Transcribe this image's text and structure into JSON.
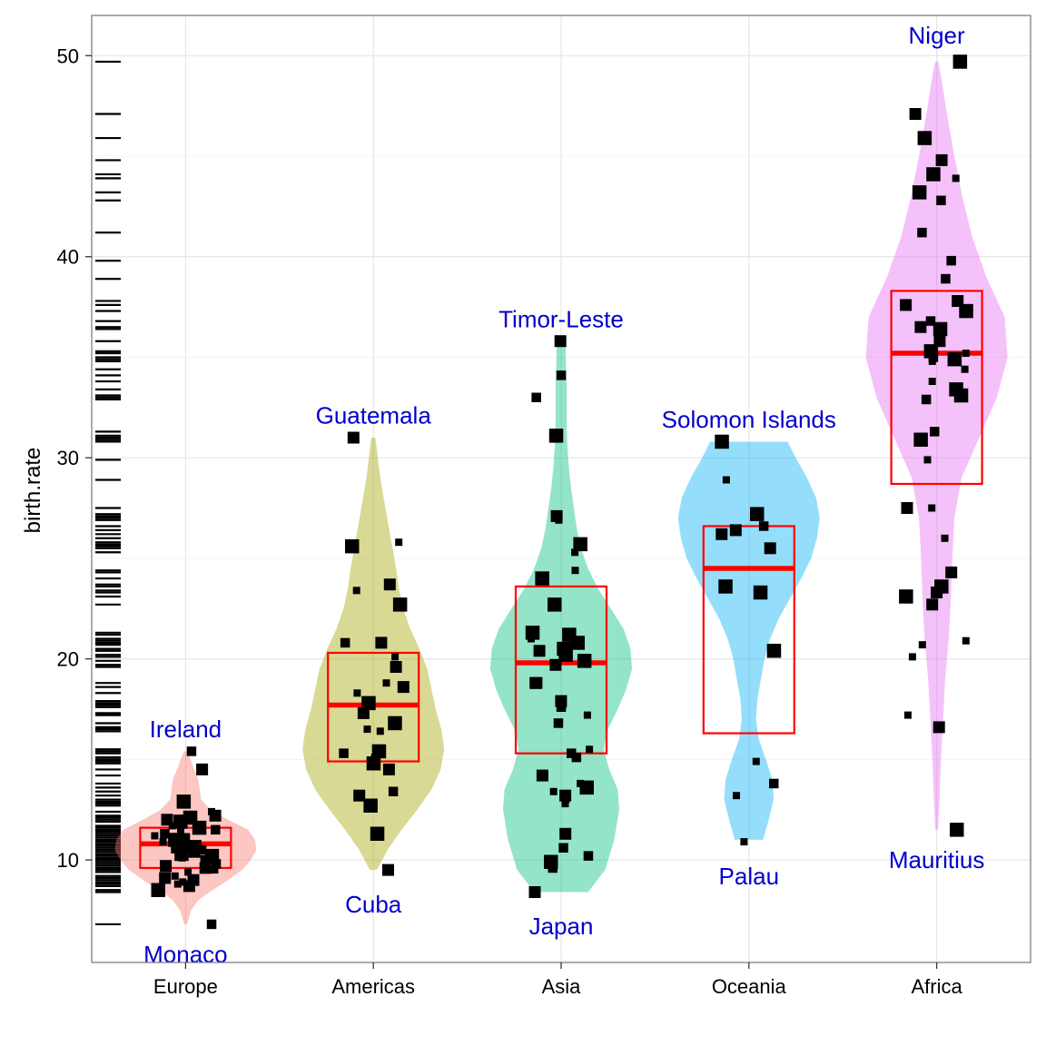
{
  "chart_data": {
    "type": "violin",
    "title": "",
    "xlabel": "",
    "ylabel": "birth.rate",
    "ylim": [
      4.9,
      52
    ],
    "yticks": [
      10,
      20,
      30,
      40,
      50
    ],
    "grid": true,
    "legend": "none",
    "categories": [
      "Europe",
      "Americas",
      "Asia",
      "Oceania",
      "Africa"
    ],
    "colors": {
      "Europe": "#f8766d",
      "Americas": "#a3a500",
      "Asia": "#00bf7d",
      "Oceania": "#00b0f6",
      "Africa": "#e76bf3",
      "box": "#ff0000",
      "points": "#000000",
      "labels": "#0000cc"
    },
    "boxes": [
      {
        "group": "Europe",
        "q1": 9.6,
        "median": 10.8,
        "q3": 11.6
      },
      {
        "group": "Americas",
        "q1": 14.9,
        "median": 17.7,
        "q3": 20.3
      },
      {
        "group": "Asia",
        "q1": 15.3,
        "median": 19.8,
        "q3": 23.6
      },
      {
        "group": "Oceania",
        "q1": 16.3,
        "median": 24.5,
        "q3": 26.6
      },
      {
        "group": "Africa",
        "q1": 28.7,
        "median": 35.2,
        "q3": 38.3
      }
    ],
    "violins": [
      {
        "group": "Europe",
        "min": 6.8,
        "max": 15.4,
        "profile": [
          [
            6.8,
            0.02
          ],
          [
            7.5,
            0.08
          ],
          [
            8.0,
            0.18
          ],
          [
            8.5,
            0.38
          ],
          [
            9.0,
            0.6
          ],
          [
            9.5,
            0.8
          ],
          [
            10.0,
            0.92
          ],
          [
            10.5,
            1.0
          ],
          [
            11.0,
            0.98
          ],
          [
            11.5,
            0.88
          ],
          [
            12.0,
            0.6
          ],
          [
            12.5,
            0.35
          ],
          [
            13.0,
            0.22
          ],
          [
            13.5,
            0.2
          ],
          [
            14.0,
            0.18
          ],
          [
            14.5,
            0.12
          ],
          [
            15.0,
            0.07
          ],
          [
            15.4,
            0.02
          ]
        ]
      },
      {
        "group": "Americas",
        "min": 9.5,
        "max": 31.0,
        "profile": [
          [
            9.5,
            0.05
          ],
          [
            10.5,
            0.2
          ],
          [
            11.5,
            0.4
          ],
          [
            12.5,
            0.62
          ],
          [
            13.5,
            0.82
          ],
          [
            14.5,
            0.95
          ],
          [
            15.5,
            1.0
          ],
          [
            16.5,
            0.96
          ],
          [
            17.5,
            0.88
          ],
          [
            18.5,
            0.82
          ],
          [
            19.5,
            0.76
          ],
          [
            20.5,
            0.65
          ],
          [
            21.5,
            0.52
          ],
          [
            22.5,
            0.42
          ],
          [
            23.5,
            0.36
          ],
          [
            24.5,
            0.32
          ],
          [
            25.5,
            0.27
          ],
          [
            26.5,
            0.22
          ],
          [
            27.5,
            0.17
          ],
          [
            28.5,
            0.12
          ],
          [
            29.5,
            0.08
          ],
          [
            31.0,
            0.03
          ]
        ]
      },
      {
        "group": "Asia",
        "min": 8.4,
        "max": 35.8,
        "profile": [
          [
            8.4,
            0.38
          ],
          [
            9.5,
            0.62
          ],
          [
            11.0,
            0.75
          ],
          [
            12.5,
            0.82
          ],
          [
            13.5,
            0.8
          ],
          [
            14.5,
            0.68
          ],
          [
            15.5,
            0.6
          ],
          [
            16.5,
            0.66
          ],
          [
            17.5,
            0.8
          ],
          [
            18.5,
            0.92
          ],
          [
            19.5,
            1.0
          ],
          [
            20.5,
            0.98
          ],
          [
            21.5,
            0.88
          ],
          [
            22.5,
            0.7
          ],
          [
            23.5,
            0.52
          ],
          [
            24.5,
            0.38
          ],
          [
            25.5,
            0.28
          ],
          [
            26.5,
            0.22
          ],
          [
            27.5,
            0.18
          ],
          [
            28.5,
            0.14
          ],
          [
            29.5,
            0.11
          ],
          [
            30.5,
            0.09
          ],
          [
            31.5,
            0.08
          ],
          [
            32.5,
            0.08
          ],
          [
            33.5,
            0.08
          ],
          [
            34.5,
            0.07
          ],
          [
            35.8,
            0.06
          ]
        ]
      },
      {
        "group": "Oceania",
        "min": 11.0,
        "max": 30.8,
        "profile": [
          [
            11.0,
            0.2
          ],
          [
            12.0,
            0.28
          ],
          [
            13.0,
            0.35
          ],
          [
            14.0,
            0.33
          ],
          [
            15.0,
            0.24
          ],
          [
            16.0,
            0.14
          ],
          [
            17.0,
            0.1
          ],
          [
            18.0,
            0.12
          ],
          [
            19.0,
            0.17
          ],
          [
            20.0,
            0.22
          ],
          [
            21.0,
            0.3
          ],
          [
            22.0,
            0.42
          ],
          [
            23.0,
            0.58
          ],
          [
            24.0,
            0.74
          ],
          [
            25.0,
            0.88
          ],
          [
            26.0,
            0.96
          ],
          [
            27.0,
            1.0
          ],
          [
            28.0,
            0.95
          ],
          [
            29.0,
            0.82
          ],
          [
            30.0,
            0.66
          ],
          [
            30.8,
            0.55
          ]
        ]
      },
      {
        "group": "Africa",
        "min": 11.5,
        "max": 49.7,
        "profile": [
          [
            11.5,
            0.02
          ],
          [
            13.0,
            0.04
          ],
          [
            15.0,
            0.06
          ],
          [
            17.0,
            0.09
          ],
          [
            19.0,
            0.12
          ],
          [
            21.0,
            0.17
          ],
          [
            23.0,
            0.2
          ],
          [
            25.0,
            0.22
          ],
          [
            27.0,
            0.25
          ],
          [
            29.0,
            0.35
          ],
          [
            31.0,
            0.6
          ],
          [
            33.0,
            0.85
          ],
          [
            35.0,
            1.0
          ],
          [
            37.0,
            0.96
          ],
          [
            39.0,
            0.7
          ],
          [
            41.0,
            0.5
          ],
          [
            43.0,
            0.36
          ],
          [
            45.0,
            0.25
          ],
          [
            47.0,
            0.15
          ],
          [
            49.0,
            0.06
          ],
          [
            49.7,
            0.02
          ]
        ]
      }
    ],
    "points": [
      {
        "group": "Europe",
        "values": [
          6.8,
          8.5,
          8.7,
          8.8,
          8.9,
          9.0,
          9.1,
          9.2,
          9.4,
          9.5,
          9.6,
          9.7,
          9.8,
          10.0,
          10.1,
          10.2,
          10.3,
          10.4,
          10.5,
          10.5,
          10.6,
          10.7,
          10.8,
          10.9,
          11.0,
          11.1,
          11.2,
          11.3,
          11.4,
          11.5,
          11.6,
          11.7,
          11.9,
          12.0,
          12.1,
          12.2,
          12.4,
          12.9,
          14.5,
          15.4
        ]
      },
      {
        "group": "Americas",
        "values": [
          9.5,
          11.3,
          12.7,
          13.2,
          13.4,
          14.5,
          14.8,
          15.0,
          15.1,
          15.3,
          15.4,
          16.4,
          16.5,
          16.8,
          17.3,
          17.8,
          18.3,
          18.6,
          18.8,
          19.6,
          20.1,
          20.8,
          20.8,
          22.7,
          23.4,
          23.7,
          25.6,
          25.8,
          31.0
        ]
      },
      {
        "group": "Asia",
        "values": [
          8.4,
          9.6,
          9.9,
          10.2,
          10.6,
          11.3,
          12.8,
          13.0,
          13.2,
          13.4,
          13.6,
          13.8,
          14.2,
          15.1,
          15.3,
          15.5,
          16.8,
          17.2,
          17.6,
          17.7,
          17.9,
          18.8,
          18.8,
          19.7,
          19.9,
          20.2,
          20.4,
          20.5,
          20.8,
          21.0,
          21.2,
          21.3,
          22.7,
          24.0,
          24.4,
          25.3,
          25.7,
          26.9,
          27.0,
          27.1,
          31.1,
          33.0,
          34.1,
          35.8
        ]
      },
      {
        "group": "Oceania",
        "values": [
          10.9,
          13.2,
          13.8,
          14.9,
          20.4,
          23.3,
          23.6,
          25.5,
          26.2,
          26.4,
          26.6,
          27.2,
          28.9,
          30.8
        ]
      },
      {
        "group": "Africa",
        "values": [
          11.5,
          16.6,
          17.2,
          20.1,
          20.7,
          20.9,
          22.7,
          23.1,
          23.3,
          23.6,
          24.3,
          26.0,
          27.5,
          27.5,
          29.9,
          30.9,
          31.3,
          32.9,
          33.1,
          33.4,
          33.8,
          34.4,
          34.8,
          34.9,
          35.0,
          35.2,
          35.3,
          35.8,
          36.4,
          36.5,
          36.8,
          37.3,
          37.6,
          37.8,
          38.9,
          39.8,
          41.2,
          42.8,
          43.2,
          43.9,
          44.1,
          44.8,
          45.9,
          47.1,
          49.7
        ]
      }
    ],
    "rug": [
      6.8,
      8.4,
      8.5,
      8.7,
      8.8,
      8.9,
      9.0,
      9.1,
      9.2,
      9.4,
      9.5,
      9.6,
      9.7,
      9.8,
      9.9,
      10.0,
      10.1,
      10.2,
      10.3,
      10.4,
      10.5,
      10.6,
      10.7,
      10.8,
      10.9,
      11.0,
      11.1,
      11.2,
      11.3,
      11.4,
      11.5,
      11.6,
      11.7,
      11.9,
      12.0,
      12.1,
      12.2,
      12.4,
      12.7,
      12.8,
      12.9,
      13.0,
      13.2,
      13.4,
      13.6,
      13.8,
      14.2,
      14.5,
      14.8,
      14.9,
      15.0,
      15.1,
      15.3,
      15.4,
      15.5,
      16.4,
      16.5,
      16.6,
      16.8,
      17.2,
      17.3,
      17.6,
      17.7,
      17.8,
      17.9,
      18.3,
      18.6,
      18.8,
      19.6,
      19.7,
      19.9,
      20.1,
      20.2,
      20.4,
      20.5,
      20.7,
      20.8,
      20.9,
      21.0,
      21.2,
      21.3,
      22.7,
      23.1,
      23.3,
      23.4,
      23.6,
      23.7,
      24.0,
      24.3,
      24.4,
      25.3,
      25.5,
      25.6,
      25.7,
      25.8,
      26.0,
      26.2,
      26.4,
      26.6,
      26.9,
      27.0,
      27.1,
      27.2,
      27.5,
      28.9,
      29.9,
      30.8,
      30.9,
      31.0,
      31.1,
      31.3,
      32.9,
      33.0,
      33.1,
      33.4,
      33.8,
      34.1,
      34.4,
      34.8,
      34.9,
      35.0,
      35.2,
      35.3,
      35.8,
      36.4,
      36.5,
      36.8,
      37.3,
      37.6,
      37.8,
      38.9,
      39.8,
      41.2,
      42.8,
      43.2,
      43.9,
      44.1,
      44.8,
      45.9,
      47.1,
      49.7
    ],
    "annotations": [
      {
        "group": "Europe",
        "text": "Ireland",
        "y": 16.5
      },
      {
        "group": "Europe",
        "text": "Monaco",
        "y": 5.3
      },
      {
        "group": "Americas",
        "text": "Guatemala",
        "y": 32.1
      },
      {
        "group": "Americas",
        "text": "Cuba",
        "y": 7.8
      },
      {
        "group": "Asia",
        "text": "Timor-Leste",
        "y": 36.9
      },
      {
        "group": "Asia",
        "text": "Japan",
        "y": 6.7
      },
      {
        "group": "Oceania",
        "text": "Solomon Islands",
        "y": 31.9
      },
      {
        "group": "Oceania",
        "text": "Palau",
        "y": 9.2
      },
      {
        "group": "Africa",
        "text": "Niger",
        "y": 51.0
      },
      {
        "group": "Africa",
        "text": "Mauritius",
        "y": 10.0
      }
    ]
  }
}
